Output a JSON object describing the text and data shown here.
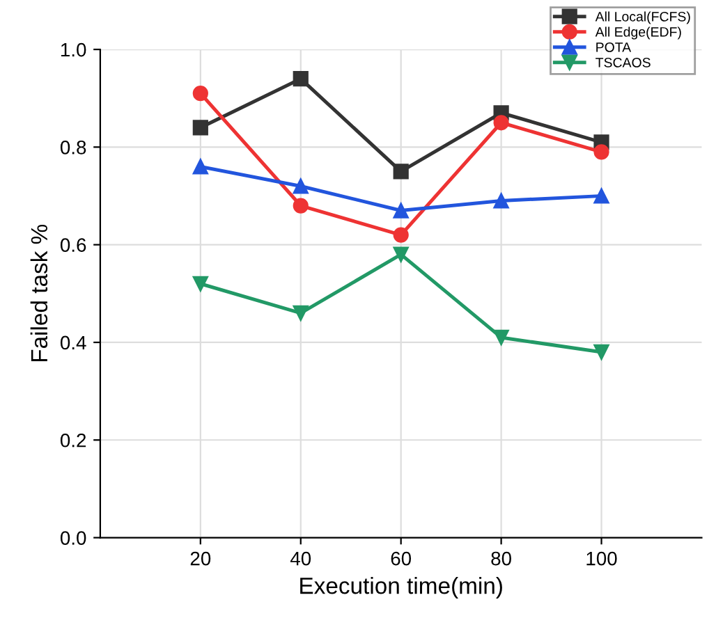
{
  "chart_data": {
    "type": "line",
    "xlabel": "Execution time(min)",
    "ylabel": "Failed task %",
    "x": [
      20,
      40,
      60,
      80,
      100
    ],
    "series": [
      {
        "name": "All Local(FCFS)",
        "color": "#333333",
        "marker": "square",
        "values": [
          0.84,
          0.94,
          0.75,
          0.87,
          0.81
        ]
      },
      {
        "name": "All Edge(EDF)",
        "color": "#ee3333",
        "marker": "circle",
        "values": [
          0.91,
          0.68,
          0.62,
          0.85,
          0.79
        ]
      },
      {
        "name": "POTA",
        "color": "#2255dd",
        "marker": "triangle",
        "values": [
          0.76,
          0.72,
          0.67,
          0.69,
          0.7
        ]
      },
      {
        "name": "TSCAOS",
        "color": "#229966",
        "marker": "triangle_down",
        "values": [
          0.52,
          0.46,
          0.58,
          0.41,
          0.38
        ]
      }
    ],
    "xlim": [
      0,
      120
    ],
    "xticks": [
      20,
      40,
      60,
      80,
      100
    ],
    "ylim": [
      0,
      1.0
    ],
    "yticks": [
      {
        "value": 0,
        "label": "0.0"
      },
      {
        "value": 0.2,
        "label": "0.2"
      },
      {
        "value": 0.4,
        "label": "0.4"
      },
      {
        "value": 0.6,
        "label": "0.6"
      },
      {
        "value": 0.8,
        "label": "0.8"
      },
      {
        "value": 1.0,
        "label": "1.0"
      }
    ],
    "grid": true,
    "legend": "top right",
    "line_style": "solid"
  }
}
